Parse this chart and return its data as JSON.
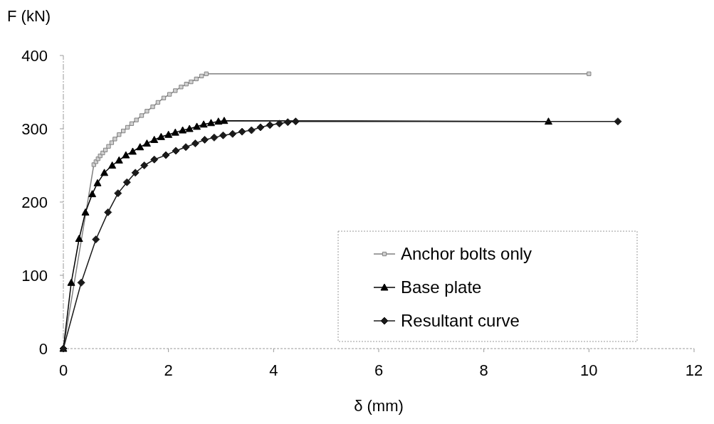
{
  "chart_data": {
    "type": "line",
    "xlabel": "δ (mm)",
    "ylabel": "F (kN)",
    "xlim": [
      0,
      12
    ],
    "ylim": [
      0,
      400
    ],
    "xticks": [
      0,
      2,
      4,
      6,
      8,
      10,
      12
    ],
    "yticks": [
      0,
      100,
      200,
      300,
      400
    ],
    "grid": false,
    "legend": "bottom right",
    "series": [
      {
        "name": "Anchor bolts only",
        "color": "#808080",
        "marker": "square",
        "x": [
          0,
          0.58,
          0.62,
          0.66,
          0.7,
          0.75,
          0.8,
          0.86,
          0.92,
          0.98,
          1.06,
          1.14,
          1.22,
          1.3,
          1.39,
          1.49,
          1.59,
          1.7,
          1.8,
          1.91,
          2.02,
          2.13,
          2.24,
          2.34,
          2.43,
          2.53,
          2.63,
          2.72,
          10
        ],
        "values": [
          0,
          251,
          255,
          259,
          263,
          267,
          271,
          276,
          281,
          286,
          292,
          297,
          302,
          307,
          312,
          318,
          324,
          330,
          336,
          342,
          347,
          352,
          357,
          361,
          364,
          368,
          372,
          375,
          375
        ]
      },
      {
        "name": "Base plate",
        "color": "#000000",
        "marker": "triangle",
        "x": [
          0,
          0.15,
          0.3,
          0.42,
          0.55,
          0.65,
          0.78,
          0.93,
          1.06,
          1.19,
          1.32,
          1.46,
          1.59,
          1.73,
          1.86,
          2.0,
          2.13,
          2.27,
          2.4,
          2.54,
          2.67,
          2.81,
          2.95,
          3.06,
          9.23
        ],
        "values": [
          0,
          90,
          150,
          186,
          211,
          226,
          240,
          250,
          257,
          264,
          269,
          275,
          280,
          285,
          289,
          292,
          295,
          298,
          300,
          303,
          306,
          308,
          310,
          311,
          310
        ]
      },
      {
        "name": "Resultant curve",
        "color": "#1a1a1a",
        "marker": "diamond",
        "x": [
          0,
          0.34,
          0.62,
          0.85,
          1.04,
          1.21,
          1.37,
          1.54,
          1.73,
          1.95,
          2.14,
          2.33,
          2.51,
          2.69,
          2.87,
          3.04,
          3.22,
          3.4,
          3.58,
          3.75,
          3.93,
          4.11,
          4.27,
          4.42,
          10.55
        ],
        "values": [
          0,
          90,
          149,
          186,
          212,
          227,
          240,
          250,
          258,
          264,
          270,
          275,
          280,
          285,
          288,
          291,
          293,
          296,
          298,
          302,
          305,
          307,
          309,
          310,
          310
        ]
      }
    ]
  }
}
